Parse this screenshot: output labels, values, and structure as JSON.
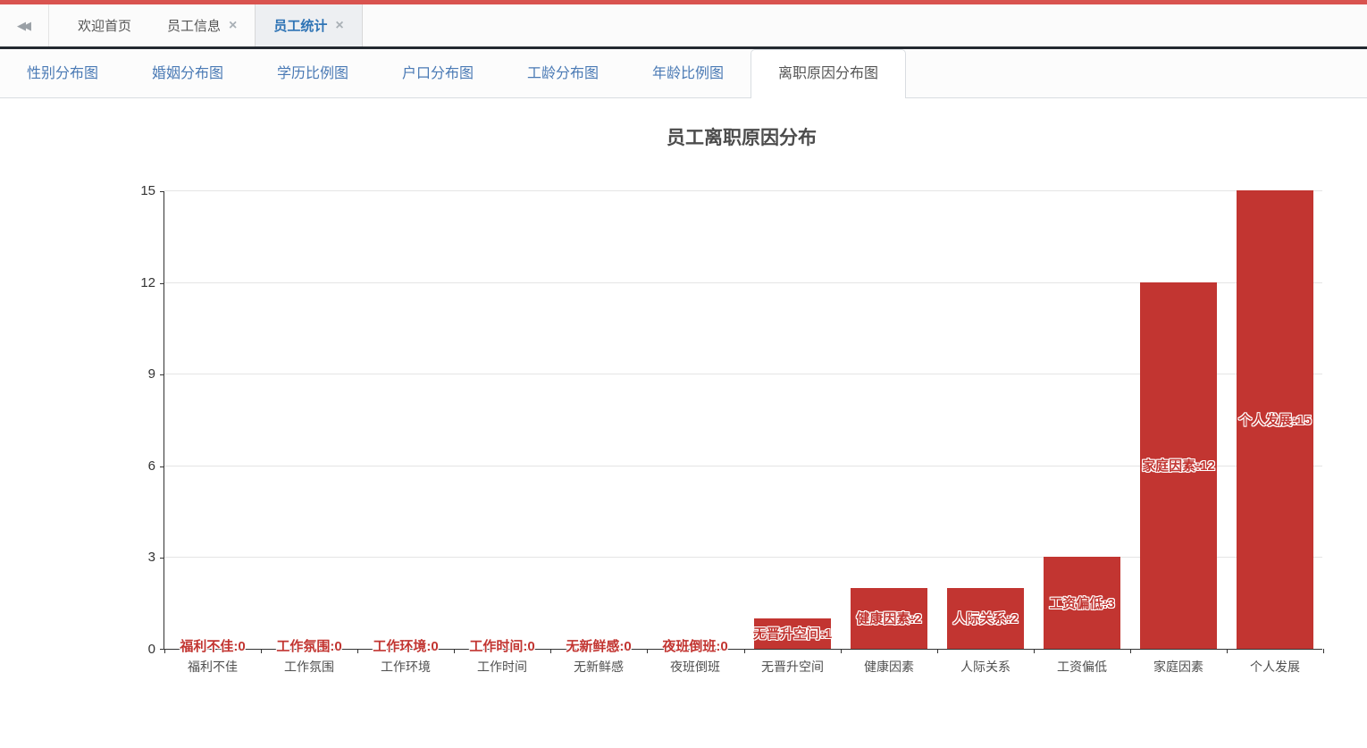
{
  "colors": {
    "top_strip": "#d9534f",
    "bar": "#c23531",
    "chart_tab_link": "#4a7ab5",
    "active_window_tab_text": "#2f74b5"
  },
  "tab_bar": {
    "collapse_icon": "◀◀",
    "close_icon": "×",
    "tabs": [
      {
        "label": "欢迎首页",
        "closable": false,
        "active": false
      },
      {
        "label": "员工信息",
        "closable": true,
        "active": false
      },
      {
        "label": "员工统计",
        "closable": true,
        "active": true
      }
    ]
  },
  "chart_tabs": [
    {
      "label": "性别分布图",
      "active": false
    },
    {
      "label": "婚姻分布图",
      "active": false
    },
    {
      "label": "学历比例图",
      "active": false
    },
    {
      "label": "户口分布图",
      "active": false
    },
    {
      "label": "工龄分布图",
      "active": false
    },
    {
      "label": "年龄比例图",
      "active": false
    },
    {
      "label": "离职原因分布图",
      "active": true
    }
  ],
  "chart_data": {
    "type": "bar",
    "title": "员工离职原因分布",
    "categories": [
      "福利不佳",
      "工作氛围",
      "工作环境",
      "工作时间",
      "无新鲜感",
      "夜班倒班",
      "无晋升空间",
      "健康因素",
      "人际关系",
      "工资偏低",
      "家庭因素",
      "个人发展"
    ],
    "values": [
      0,
      0,
      0,
      0,
      0,
      0,
      1,
      2,
      2,
      3,
      12,
      15
    ],
    "bar_labels": [
      "福利不佳:0",
      "工作氛围:0",
      "工作环境:0",
      "工作时间:0",
      "无新鲜感:0",
      "夜班倒班:0",
      "无晋升空间:1",
      "健康因素:2",
      "人际关系:2",
      "工资偏低:3",
      "家庭因素:12",
      "个人发展:15"
    ],
    "label_format": "{category}:{value}",
    "xlabel": "",
    "ylabel": "",
    "yticks": [
      0,
      3,
      6,
      9,
      12,
      15
    ],
    "ylim": [
      0,
      15
    ],
    "grid": true,
    "legend_position": "none",
    "bar_color": "#c23531",
    "label_style": "red text with white outline, centered inside bar (on baseline for zero values)"
  }
}
